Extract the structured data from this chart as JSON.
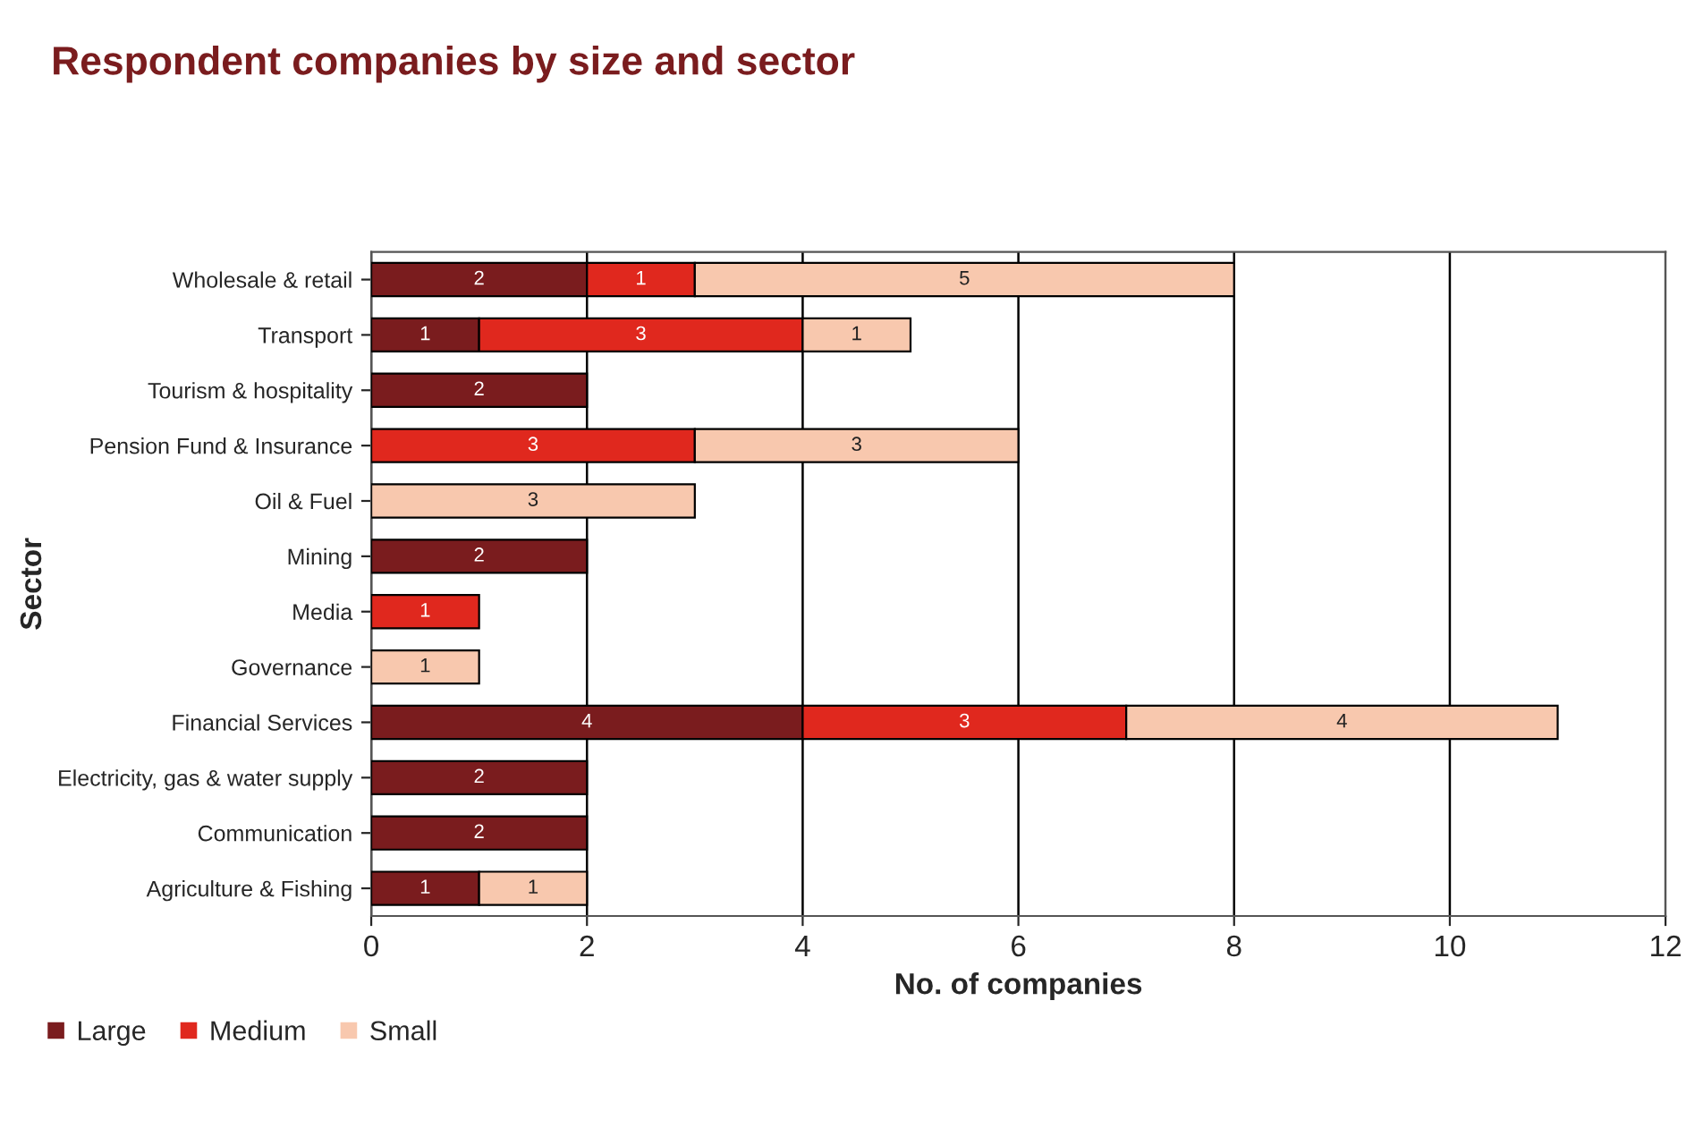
{
  "chart_data": {
    "type": "bar",
    "orientation": "horizontal",
    "stacked": true,
    "title": "Respondent companies by size and sector",
    "xlabel": "No. of companies",
    "ylabel": "Sector",
    "categories": [
      "Wholesale & retail",
      "Transport",
      "Tourism & hospitality",
      "Pension Fund & Insurance",
      "Oil & Fuel",
      "Mining",
      "Media",
      "Governance",
      "Financial Services",
      "Electricity, gas & water supply",
      "Communication",
      "Agriculture & Fishing"
    ],
    "series": [
      {
        "name": "Large",
        "color": "#7a1c1e",
        "values": [
          2,
          1,
          2,
          null,
          null,
          2,
          null,
          null,
          4,
          2,
          2,
          1
        ]
      },
      {
        "name": "Medium",
        "color": "#e0281e",
        "values": [
          1,
          3,
          null,
          3,
          null,
          null,
          1,
          null,
          3,
          null,
          null,
          null
        ]
      },
      {
        "name": "Small",
        "color": "#f8c8ae",
        "values": [
          5,
          1,
          null,
          3,
          3,
          null,
          null,
          1,
          4,
          null,
          null,
          1
        ]
      }
    ],
    "xlim": [
      0,
      12
    ],
    "xticks": [
      0,
      2,
      4,
      6,
      8,
      10,
      12
    ],
    "grid": "x",
    "data_labels": true,
    "legend": "bottom left"
  }
}
